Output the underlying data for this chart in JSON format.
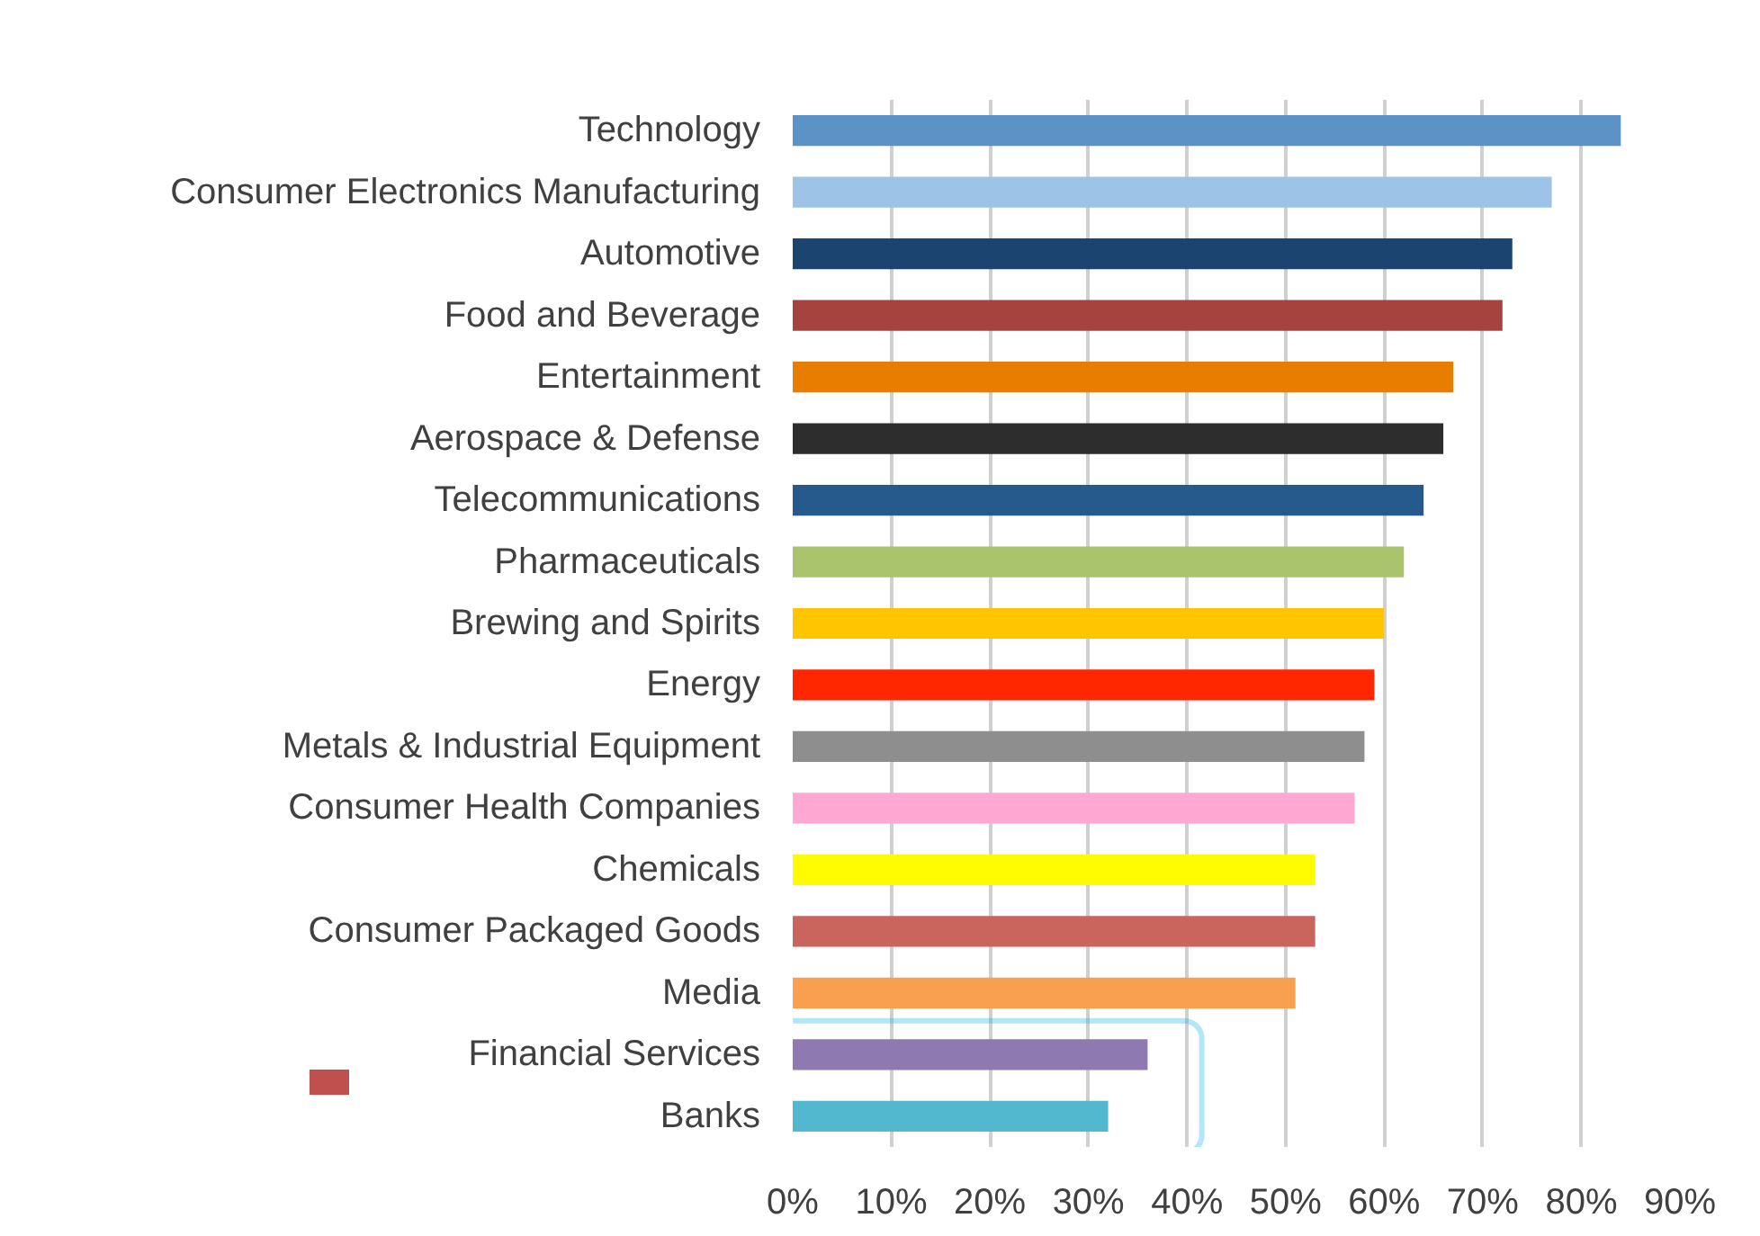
{
  "chart_data": {
    "type": "bar",
    "orientation": "horizontal",
    "categories": [
      "Technology",
      "Consumer Electronics Manufacturing",
      "Automotive",
      "Food and Beverage",
      "Entertainment",
      "Aerospace & Defense",
      "Telecommunications",
      "Pharmaceuticals",
      "Brewing and Spirits",
      "Energy",
      "Metals & Industrial Equipment",
      "Consumer Health Companies",
      "Chemicals",
      "Consumer Packaged Goods",
      "Media",
      "Financial Services",
      "Banks"
    ],
    "values": [
      84,
      77,
      73,
      72,
      67,
      66,
      64,
      62,
      60,
      59,
      58,
      57,
      53,
      53,
      51,
      36,
      32
    ],
    "colors": [
      "#5b93c7",
      "#9dc3e6",
      "#1b4470",
      "#a5443f",
      "#e87d00",
      "#2d2d2d",
      "#265a8c",
      "#a9c46c",
      "#ffc600",
      "#ff2600",
      "#8e8e8e",
      "#ffa8d4",
      "#fffc00",
      "#c9655c",
      "#f8a050",
      "#8e79b0",
      "#52b8d0"
    ],
    "xlim": [
      0,
      90
    ],
    "xticks": [
      {
        "value": 0,
        "label": "0%"
      },
      {
        "value": 10,
        "label": "10%"
      },
      {
        "value": 20,
        "label": "20%"
      },
      {
        "value": 30,
        "label": "30%"
      },
      {
        "value": 40,
        "label": "40%"
      },
      {
        "value": 50,
        "label": "50%"
      },
      {
        "value": 60,
        "label": "60%"
      },
      {
        "value": 70,
        "label": "70%"
      },
      {
        "value": 80,
        "label": "80%"
      },
      {
        "value": 90,
        "label": "90%"
      }
    ],
    "grid": "x"
  }
}
